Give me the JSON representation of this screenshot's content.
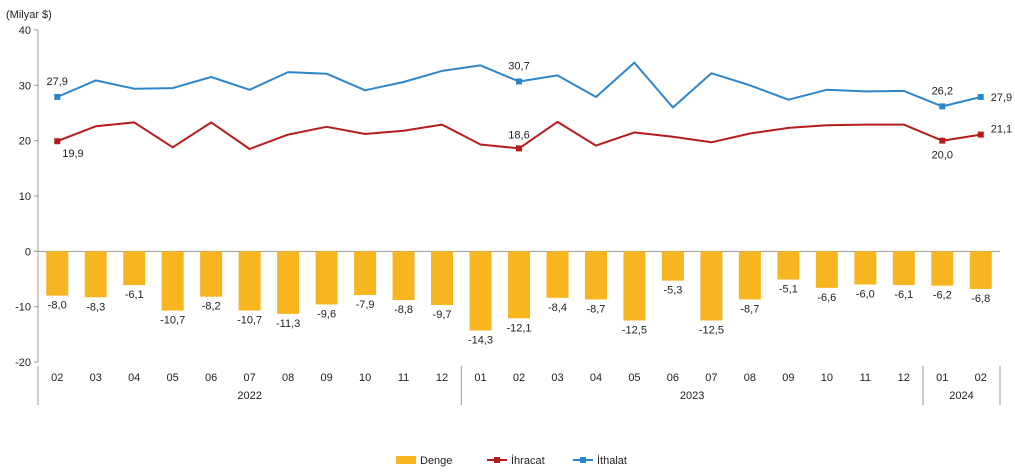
{
  "chart_data": {
    "type": "bar+line",
    "unit_label": "(Milyar $)",
    "ylim": [
      -20,
      40
    ],
    "yticks": [
      -20,
      -10,
      0,
      10,
      20,
      30,
      40
    ],
    "categories": [
      "02",
      "03",
      "04",
      "05",
      "06",
      "07",
      "08",
      "09",
      "10",
      "11",
      "12",
      "01",
      "02",
      "03",
      "04",
      "05",
      "06",
      "07",
      "08",
      "09",
      "10",
      "11",
      "12",
      "01",
      "02"
    ],
    "year_groups": [
      {
        "label": "2022",
        "start": 0,
        "end": 10
      },
      {
        "label": "2023",
        "start": 11,
        "end": 22
      },
      {
        "label": "2024",
        "start": 23,
        "end": 24
      }
    ],
    "series": [
      {
        "name": "Denge",
        "type": "bar",
        "color": "#F7B520",
        "values": [
          -8.0,
          -8.3,
          -6.1,
          -10.7,
          -8.2,
          -10.7,
          -11.3,
          -9.6,
          -7.9,
          -8.8,
          -9.7,
          -14.3,
          -12.1,
          -8.4,
          -8.7,
          -12.5,
          -5.3,
          -12.5,
          -8.7,
          -5.1,
          -6.6,
          -6.0,
          -6.1,
          -6.2,
          -6.8
        ],
        "labels": [
          "-8,0",
          "-8,3",
          "-6,1",
          "-10,7",
          "-8,2",
          "-10,7",
          "-11,3",
          "-9,6",
          "-7,9",
          "-8,8",
          "-9,7",
          "-14,3",
          "-12,1",
          "-8,4",
          "-8,7",
          "-12,5",
          "-5,3",
          "-12,5",
          "-8,7",
          "-5,1",
          "-6,6",
          "-6,0",
          "-6,1",
          "-6,2",
          "-6,8"
        ]
      },
      {
        "name": "İhracat",
        "type": "line",
        "color": "#B71C1C",
        "values": [
          19.9,
          22.6,
          23.3,
          18.8,
          23.3,
          18.5,
          21.1,
          22.5,
          21.2,
          21.8,
          22.9,
          19.3,
          18.6,
          23.4,
          19.1,
          21.5,
          20.7,
          19.7,
          21.3,
          22.3,
          22.8,
          22.9,
          22.9,
          20.0,
          21.1
        ],
        "labels": {
          "0": "19,9",
          "12": "18,6",
          "23": "20,0",
          "24": "21,1"
        }
      },
      {
        "name": "İthalat",
        "type": "line",
        "color": "#2E86C8",
        "values": [
          27.9,
          30.9,
          29.4,
          29.5,
          31.5,
          29.2,
          32.4,
          32.1,
          29.1,
          30.6,
          32.6,
          33.6,
          30.7,
          31.8,
          27.9,
          34.1,
          26.0,
          32.2,
          30.0,
          27.4,
          29.2,
          28.9,
          29.0,
          26.2,
          27.9
        ],
        "labels": {
          "0": "27,9",
          "12": "30,7",
          "23": "26,2",
          "24": "27,9"
        }
      }
    ],
    "legend": {
      "placement": "bottom-center",
      "items": [
        "Denge",
        "İhracat",
        "İthalat"
      ]
    },
    "grid": false
  }
}
